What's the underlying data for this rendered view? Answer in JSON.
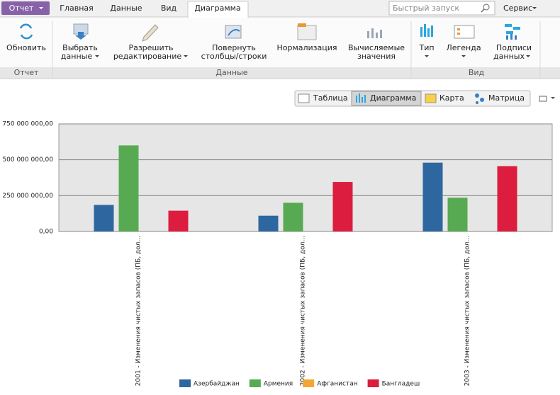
{
  "tabs": [
    "Отчет",
    "Главная",
    "Данные",
    "Вид",
    "Диаграмма"
  ],
  "search_placeholder": "Быстрый запуск",
  "service": "Сервис",
  "ribbon": {
    "buttons": [
      {
        "lines": [
          "Обновить"
        ]
      },
      {
        "lines": [
          "Выбрать",
          "данные"
        ]
      },
      {
        "lines": [
          "Разрешить",
          "редактирование"
        ]
      },
      {
        "lines": [
          "Повернуть",
          "столбцы/строки"
        ]
      },
      {
        "lines": [
          "Нормализация"
        ]
      },
      {
        "lines": [
          "Вычисляемые",
          "значения"
        ]
      },
      {
        "lines": [
          "Тип"
        ]
      },
      {
        "lines": [
          "Легенда"
        ]
      },
      {
        "lines": [
          "Подписи",
          "данных"
        ]
      }
    ],
    "groups": [
      "Отчет",
      "Данные",
      "Вид"
    ]
  },
  "views": [
    "Таблица",
    "Диаграмма",
    "Карта",
    "Матрица"
  ],
  "chart_data": {
    "type": "bar",
    "categories": [
      "2001 - Изменения чистых запасов (ПБ, дол...",
      "2002 - Изменения чистых запасов (ПБ, дол...",
      "2003 - Изменения чистых запасов (ПБ, дол..."
    ],
    "series": [
      {
        "name": "Азербайджан",
        "color": "#2e67a0",
        "values": [
          185000000,
          110000000,
          480000000
        ]
      },
      {
        "name": "Армения",
        "color": "#58aa52",
        "values": [
          600000000,
          200000000,
          235000000
        ]
      },
      {
        "name": "Афганистан",
        "color": "#f2a735",
        "values": [
          null,
          null,
          null
        ]
      },
      {
        "name": "Бангладеш",
        "color": "#dc1d3f",
        "values": [
          145000000,
          345000000,
          455000000
        ]
      }
    ],
    "ylim": [
      0,
      750000000
    ],
    "yticks": [
      {
        "value": 0,
        "label": "0,00"
      },
      {
        "value": 250000000,
        "label": "250 000 000,00"
      },
      {
        "value": 500000000,
        "label": "500 000 000,00"
      },
      {
        "value": 750000000,
        "label": "750 000 000,00"
      }
    ],
    "grid": true,
    "legend": "bottom"
  }
}
